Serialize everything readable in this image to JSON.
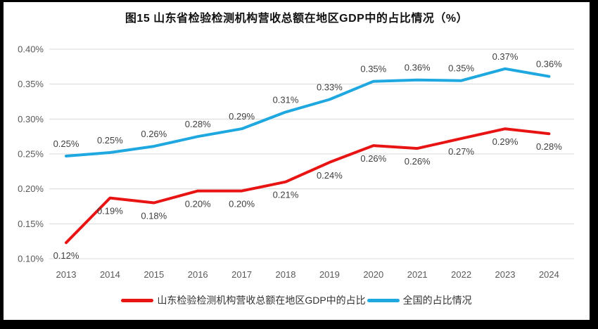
{
  "title": "图15  山东省检验检测机构营收总额在地区GDP中的占比情况（%）",
  "frame_color": "#000000",
  "chart_data": {
    "type": "line",
    "title": "图15  山东省检验检测机构营收总额在地区GDP中的占比情况（%）",
    "categories": [
      "2013",
      "2014",
      "2015",
      "2016",
      "2017",
      "2018",
      "2019",
      "2020",
      "2021",
      "2022",
      "2023",
      "2024"
    ],
    "series": [
      {
        "name": "山东检验检测机构营收总额在地区GDP中的占比",
        "color": "#e81414",
        "labels": [
          "0.12%",
          "0.19%",
          "0.18%",
          "0.20%",
          "0.20%",
          "0.21%",
          "0.24%",
          "0.26%",
          "0.26%",
          "0.27%",
          "0.29%",
          "0.28%"
        ],
        "values": [
          0.12,
          0.19,
          0.18,
          0.2,
          0.2,
          0.21,
          0.24,
          0.26,
          0.26,
          0.27,
          0.29,
          0.28
        ],
        "plot_values": [
          0.123,
          0.187,
          0.18,
          0.197,
          0.197,
          0.21,
          0.238,
          0.262,
          0.258,
          0.272,
          0.286,
          0.279
        ],
        "label_position": "below"
      },
      {
        "name": "全国的占比情况",
        "color": "#1fa8e0",
        "labels": [
          "0.25%",
          "0.25%",
          "0.26%",
          "0.28%",
          "0.29%",
          "0.31%",
          "0.33%",
          "0.35%",
          "0.36%",
          "0.35%",
          "0.37%",
          "0.36%"
        ],
        "values": [
          0.25,
          0.25,
          0.26,
          0.28,
          0.29,
          0.31,
          0.33,
          0.35,
          0.36,
          0.35,
          0.37,
          0.36
        ],
        "plot_values": [
          0.247,
          0.252,
          0.261,
          0.275,
          0.286,
          0.31,
          0.328,
          0.354,
          0.356,
          0.355,
          0.372,
          0.361
        ],
        "label_position": "above"
      }
    ],
    "xlabel": "",
    "ylabel": "",
    "ylim": [
      0.1,
      0.4
    ],
    "yticks": [
      0.1,
      0.15,
      0.2,
      0.25,
      0.3,
      0.35,
      0.4
    ],
    "ytick_labels": [
      "0.10%",
      "0.15%",
      "0.20%",
      "0.25%",
      "0.30%",
      "0.35%",
      "0.40%"
    ],
    "grid": true,
    "grid_color": "#d9d9d9",
    "legend_position": "bottom"
  }
}
